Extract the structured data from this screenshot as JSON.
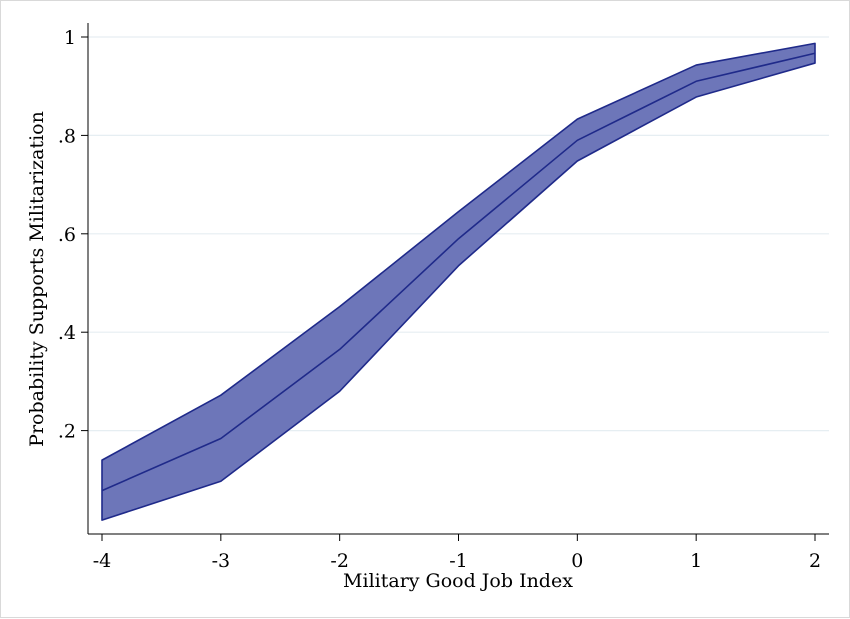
{
  "chart_data": {
    "type": "area",
    "title": "",
    "xlabel": "Military Good Job Index",
    "ylabel": "Probability Supports Militarization",
    "x": [
      -4,
      -3,
      -2,
      -1,
      0,
      1,
      2
    ],
    "series": [
      {
        "estimate": [
          0.078,
          0.184,
          0.365,
          0.59,
          0.79,
          0.91,
          0.967
        ],
        "lower": [
          0.018,
          0.097,
          0.28,
          0.535,
          0.748,
          0.878,
          0.947
        ],
        "upper": [
          0.14,
          0.272,
          0.452,
          0.645,
          0.833,
          0.943,
          0.987
        ]
      }
    ],
    "xlim": [
      -4,
      2
    ],
    "ylim": [
      0,
      1
    ],
    "xticks": [
      -4,
      -3,
      -2,
      -1,
      0,
      1,
      2
    ],
    "xtick_labels": [
      "-4",
      "-3",
      "-2",
      "-1",
      "0",
      "1",
      "2"
    ],
    "yticks": [
      0.2,
      0.4,
      0.6,
      0.8,
      1
    ],
    "ytick_labels": [
      ".2",
      ".4",
      ".6",
      ".8",
      "1"
    ],
    "grid": true,
    "legend": "none",
    "colors": {
      "band_fill": "#6d76b9",
      "line": "#1f2a8a",
      "grid": "#e6eef2",
      "axis": "#000000"
    }
  }
}
